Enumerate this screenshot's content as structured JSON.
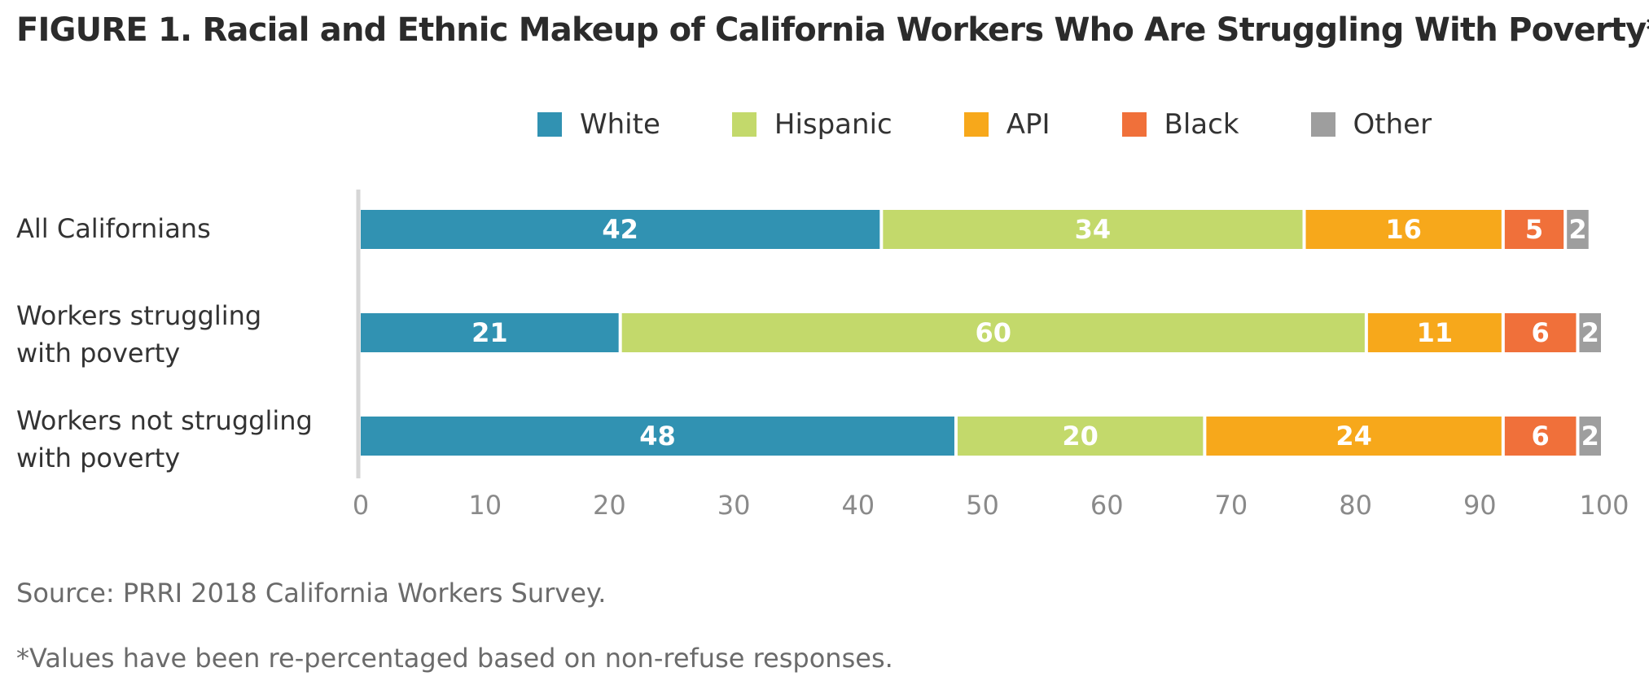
{
  "title": "FIGURE 1. Racial and Ethnic Makeup of California Workers Who Are Struggling With Poverty*",
  "source": "Source: PRRI 2018 California Workers Survey.",
  "note": "*Values have been re-percentaged based on non-refuse responses.",
  "chart_data": {
    "type": "bar",
    "orientation": "horizontal",
    "stacked": true,
    "categories": [
      [
        "All Californians"
      ],
      [
        "Workers struggling",
        "with poverty"
      ],
      [
        "Workers not struggling",
        "with poverty"
      ]
    ],
    "series": [
      {
        "name": "White",
        "color": "#3192b2",
        "values": [
          42,
          21,
          48
        ]
      },
      {
        "name": "Hispanic",
        "color": "#c3d96b",
        "values": [
          34,
          60,
          20
        ]
      },
      {
        "name": "API",
        "color": "#f7a81b",
        "values": [
          16,
          11,
          24
        ]
      },
      {
        "name": "Black",
        "color": "#f0703a",
        "values": [
          5,
          6,
          6
        ]
      },
      {
        "name": "Other",
        "color": "#9e9e9e",
        "values": [
          2,
          2,
          2
        ]
      }
    ],
    "xlim": [
      0,
      100
    ],
    "xticks": [
      0,
      10,
      20,
      30,
      40,
      50,
      60,
      70,
      80,
      90,
      100
    ],
    "legend": "top",
    "grid": false
  }
}
